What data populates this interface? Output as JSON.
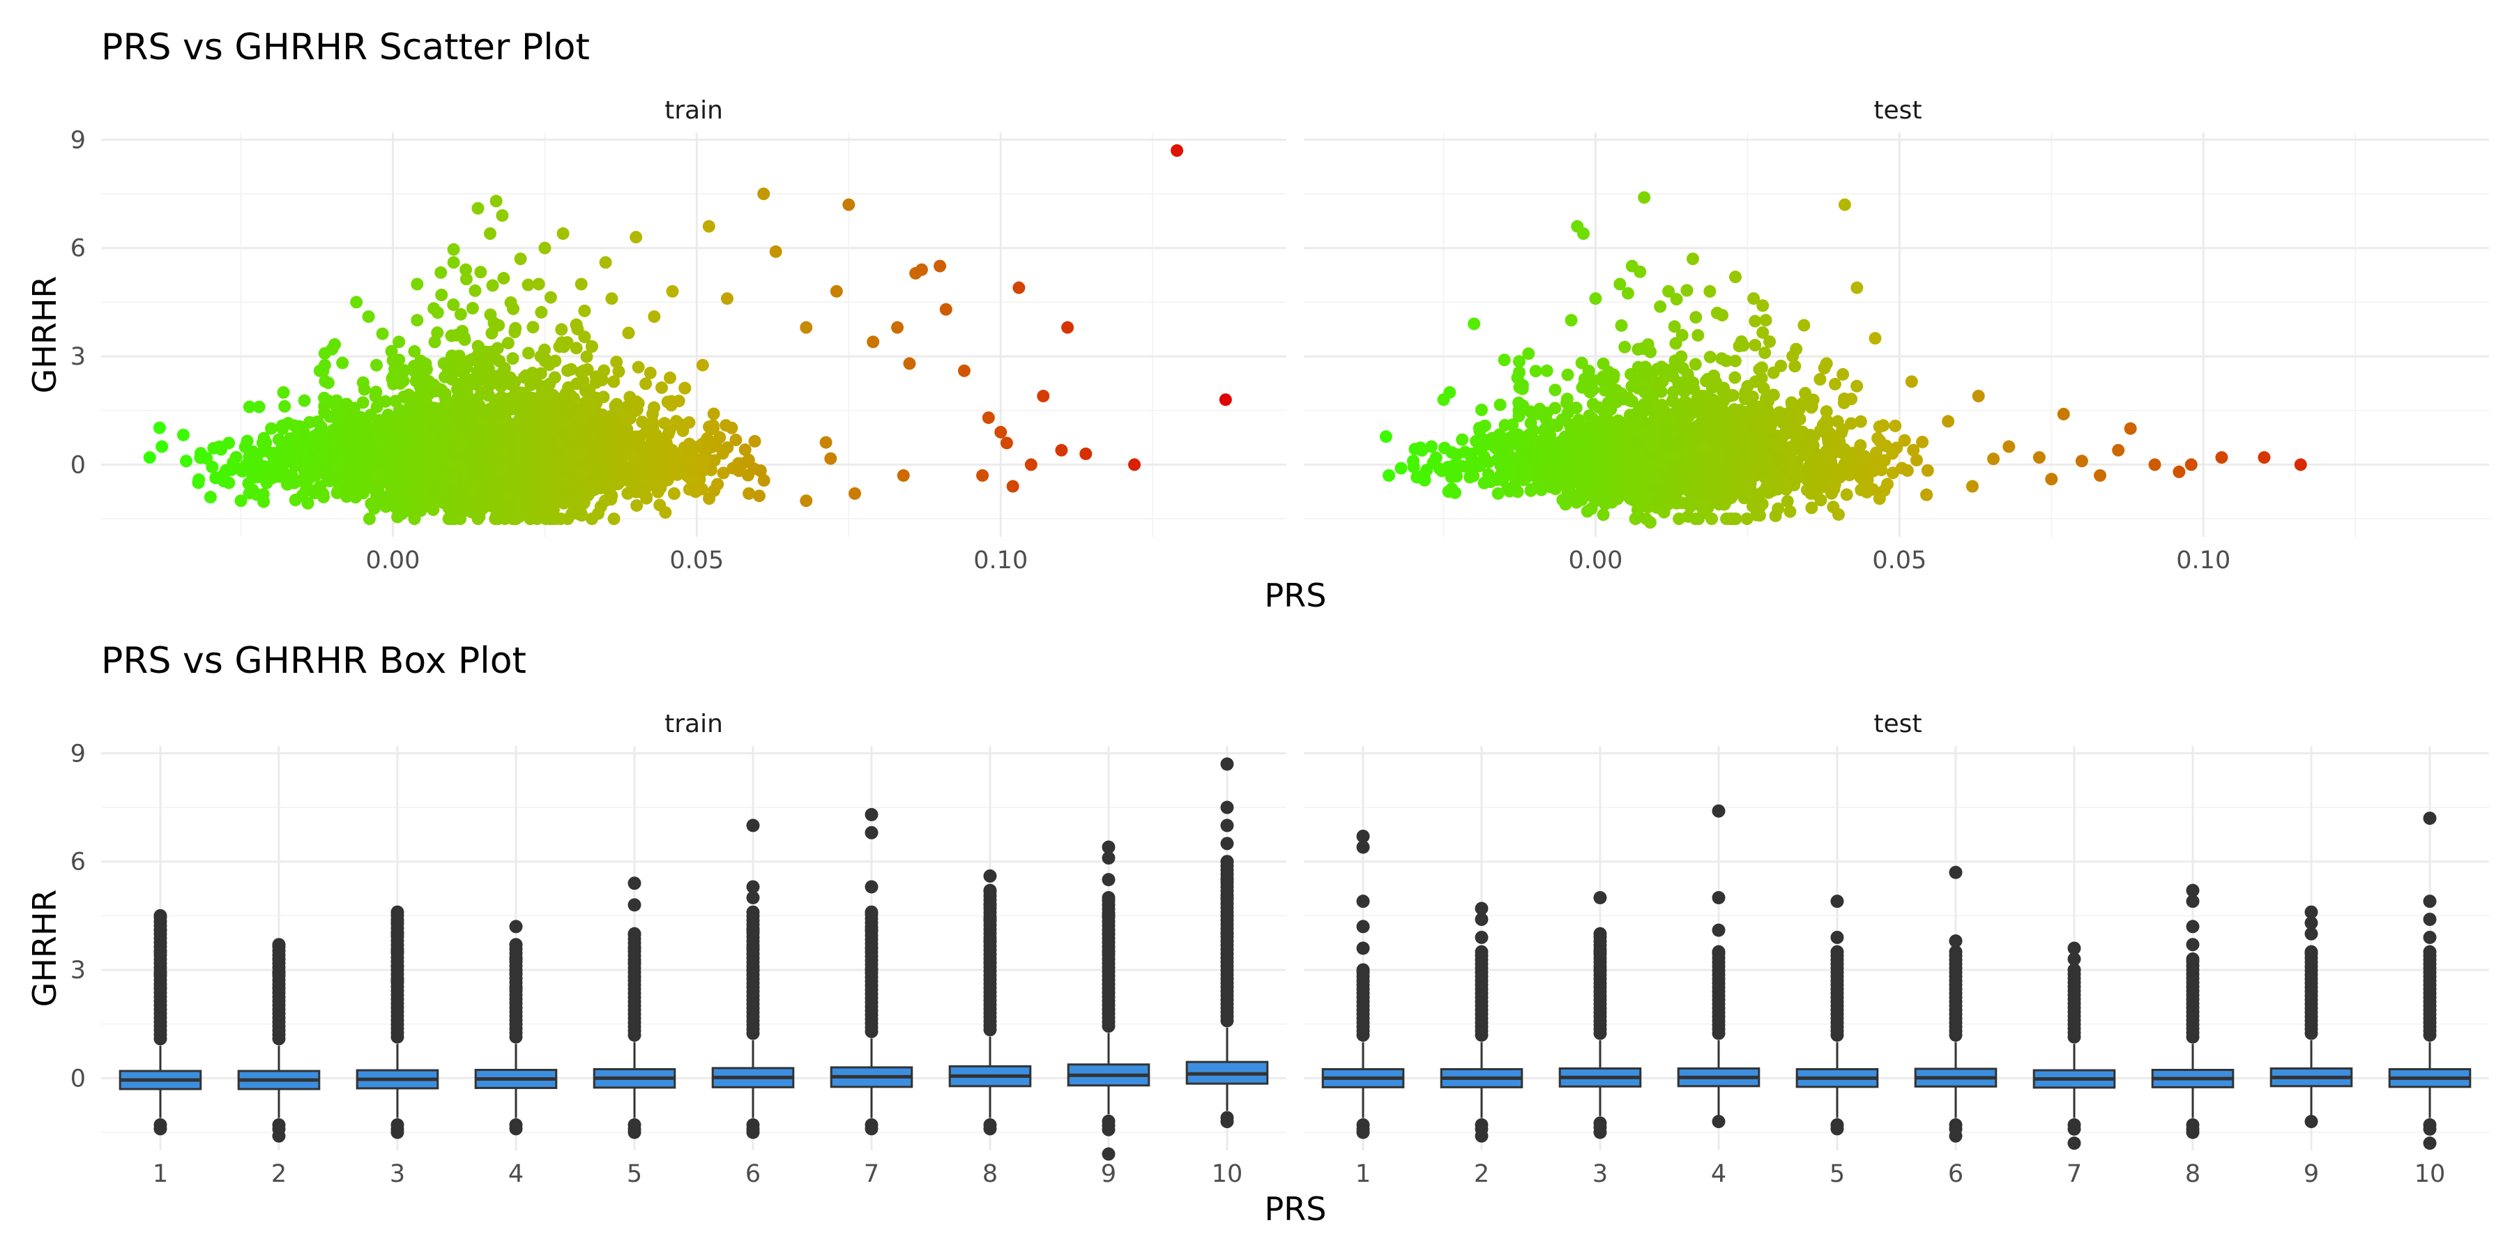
{
  "colors": {
    "low": "#33ff00",
    "mid": "#c0b000",
    "high": "#e00000",
    "box_fill": "#3c8fe0",
    "box_line": "#333333",
    "outlier": "#333333",
    "grid": "#ebebeb"
  },
  "chart_data": [
    {
      "type": "scatter",
      "title": "PRS vs GHRHR Scatter Plot",
      "xlabel": "PRS",
      "ylabel": "GHRHR",
      "color_scale": "continuous gradient by PRS (green to red)",
      "legend": "none",
      "grid": true,
      "xlim": [
        -0.048,
        0.147
      ],
      "ylim": [
        -2.0,
        9.2
      ],
      "x_ticks": [
        0.0,
        0.05,
        0.1
      ],
      "x_tick_labels": [
        "0.00",
        "0.05",
        "0.10"
      ],
      "y_ticks": [
        0,
        3,
        6,
        9
      ],
      "y_tick_labels": [
        "0",
        "3",
        "6",
        "9"
      ],
      "panels": [
        {
          "name": "train",
          "cloud": {
            "x_center": 0.015,
            "x_sd": 0.016,
            "y_sd": 0.9,
            "n": 3200
          },
          "points": [
            {
              "x": -0.04,
              "y": 0.2
            },
            {
              "x": -0.038,
              "y": 0.5
            },
            {
              "x": -0.034,
              "y": 0.1
            },
            {
              "x": -0.032,
              "y": -0.5
            },
            {
              "x": -0.03,
              "y": -0.9
            },
            {
              "x": -0.027,
              "y": 0.6
            },
            {
              "x": -0.025,
              "y": -1.0
            },
            {
              "x": -0.022,
              "y": 1.6
            },
            {
              "x": -0.02,
              "y": 1.0
            },
            {
              "x": -0.018,
              "y": 2.0
            },
            {
              "x": -0.012,
              "y": 2.6
            },
            {
              "x": -0.01,
              "y": 3.2
            },
            {
              "x": -0.006,
              "y": 4.5
            },
            {
              "x": -0.004,
              "y": 4.1
            },
            {
              "x": 0.001,
              "y": 3.4
            },
            {
              "x": 0.004,
              "y": 4.0
            },
            {
              "x": 0.004,
              "y": 5.0
            },
            {
              "x": 0.008,
              "y": 4.7
            },
            {
              "x": 0.01,
              "y": 5.6
            },
            {
              "x": 0.012,
              "y": 5.4
            },
            {
              "x": 0.014,
              "y": 7.1
            },
            {
              "x": 0.016,
              "y": 6.4
            },
            {
              "x": 0.017,
              "y": 7.3
            },
            {
              "x": 0.018,
              "y": 6.9
            },
            {
              "x": 0.021,
              "y": 5.7
            },
            {
              "x": 0.024,
              "y": 5.0
            },
            {
              "x": 0.025,
              "y": 6.0
            },
            {
              "x": 0.028,
              "y": 6.4
            },
            {
              "x": 0.031,
              "y": 5.0
            },
            {
              "x": 0.035,
              "y": 5.6
            },
            {
              "x": 0.036,
              "y": 4.6
            },
            {
              "x": 0.04,
              "y": 6.3
            },
            {
              "x": 0.043,
              "y": 4.1
            },
            {
              "x": 0.046,
              "y": 4.8
            },
            {
              "x": 0.052,
              "y": 6.6
            },
            {
              "x": 0.055,
              "y": 4.6
            },
            {
              "x": 0.061,
              "y": 7.5
            },
            {
              "x": 0.063,
              "y": 5.9
            },
            {
              "x": 0.068,
              "y": 3.8
            },
            {
              "x": 0.073,
              "y": 4.8
            },
            {
              "x": 0.075,
              "y": 7.2
            },
            {
              "x": 0.079,
              "y": 3.4
            },
            {
              "x": 0.083,
              "y": 3.8
            },
            {
              "x": 0.085,
              "y": 2.8
            },
            {
              "x": 0.086,
              "y": 5.3
            },
            {
              "x": 0.087,
              "y": 5.4
            },
            {
              "x": 0.09,
              "y": 5.5
            },
            {
              "x": 0.091,
              "y": 4.3
            },
            {
              "x": 0.094,
              "y": 2.6
            },
            {
              "x": 0.098,
              "y": 1.3
            },
            {
              "x": 0.1,
              "y": 0.9
            },
            {
              "x": 0.101,
              "y": 0.6
            },
            {
              "x": 0.102,
              "y": -0.6
            },
            {
              "x": 0.103,
              "y": 4.9
            },
            {
              "x": 0.105,
              "y": 0.0
            },
            {
              "x": 0.107,
              "y": 1.9
            },
            {
              "x": 0.11,
              "y": 0.4
            },
            {
              "x": 0.111,
              "y": 3.8
            },
            {
              "x": 0.114,
              "y": 0.3
            },
            {
              "x": 0.122,
              "y": 0.0
            },
            {
              "x": 0.129,
              "y": 8.7
            },
            {
              "x": 0.137,
              "y": 1.8
            },
            {
              "x": 0.025,
              "y": -1.4
            },
            {
              "x": 0.068,
              "y": -1.0
            },
            {
              "x": 0.076,
              "y": -0.8
            },
            {
              "x": 0.084,
              "y": -0.3
            },
            {
              "x": 0.097,
              "y": -0.3
            }
          ]
        },
        {
          "name": "test",
          "cloud": {
            "x_center": 0.012,
            "x_sd": 0.015,
            "y_sd": 0.85,
            "n": 2000
          },
          "points": [
            {
              "x": -0.034,
              "y": -0.3
            },
            {
              "x": -0.032,
              "y": -0.1
            },
            {
              "x": -0.03,
              "y": 0.1
            },
            {
              "x": -0.027,
              "y": 0.5
            },
            {
              "x": -0.025,
              "y": 1.8
            },
            {
              "x": -0.024,
              "y": 2.0
            },
            {
              "x": -0.02,
              "y": 3.9
            },
            {
              "x": -0.015,
              "y": 2.9
            },
            {
              "x": -0.012,
              "y": 2.2
            },
            {
              "x": -0.008,
              "y": 2.6
            },
            {
              "x": -0.004,
              "y": 4.0
            },
            {
              "x": -0.003,
              "y": 6.6
            },
            {
              "x": -0.002,
              "y": 6.4
            },
            {
              "x": 0.0,
              "y": 4.6
            },
            {
              "x": 0.004,
              "y": 5.0
            },
            {
              "x": 0.006,
              "y": 5.5
            },
            {
              "x": 0.008,
              "y": 7.4
            },
            {
              "x": 0.012,
              "y": 4.8
            },
            {
              "x": 0.016,
              "y": 5.7
            },
            {
              "x": 0.02,
              "y": 4.2
            },
            {
              "x": 0.023,
              "y": 5.2
            },
            {
              "x": 0.026,
              "y": 4.6
            },
            {
              "x": 0.028,
              "y": 4.0
            },
            {
              "x": 0.033,
              "y": 3.2
            },
            {
              "x": 0.038,
              "y": 2.8
            },
            {
              "x": 0.041,
              "y": 7.2
            },
            {
              "x": 0.043,
              "y": 4.9
            },
            {
              "x": 0.046,
              "y": 3.5
            },
            {
              "x": 0.052,
              "y": 2.3
            },
            {
              "x": 0.058,
              "y": 1.2
            },
            {
              "x": 0.063,
              "y": 1.9
            },
            {
              "x": 0.068,
              "y": 0.5
            },
            {
              "x": 0.073,
              "y": 0.2
            },
            {
              "x": 0.077,
              "y": 1.4
            },
            {
              "x": 0.08,
              "y": 0.1
            },
            {
              "x": 0.083,
              "y": -0.3
            },
            {
              "x": 0.086,
              "y": 0.4
            },
            {
              "x": 0.088,
              "y": 1.0
            },
            {
              "x": 0.092,
              "y": 0.0
            },
            {
              "x": 0.096,
              "y": -0.2
            },
            {
              "x": 0.098,
              "y": 0.0
            },
            {
              "x": 0.103,
              "y": 0.2
            },
            {
              "x": 0.11,
              "y": 0.2
            },
            {
              "x": 0.116,
              "y": 0.0
            },
            {
              "x": 0.009,
              "y": -1.6
            },
            {
              "x": 0.032,
              "y": -1.3
            },
            {
              "x": 0.062,
              "y": -0.6
            },
            {
              "x": 0.075,
              "y": -0.4
            }
          ]
        }
      ]
    },
    {
      "type": "box",
      "title": "PRS vs GHRHR Box Plot",
      "xlabel": "PRS",
      "ylabel": "GHRHR",
      "legend": "none",
      "grid": true,
      "ylim": [
        -2.0,
        9.2
      ],
      "y_ticks": [
        0,
        3,
        6,
        9
      ],
      "y_tick_labels": [
        "0",
        "3",
        "6",
        "9"
      ],
      "categories": [
        "1",
        "2",
        "3",
        "4",
        "5",
        "6",
        "7",
        "8",
        "9",
        "10"
      ],
      "panels": [
        {
          "name": "train",
          "boxes": [
            {
              "cat": "1",
              "q1": -0.3,
              "median": -0.05,
              "q3": 0.2,
              "lo": -1.1,
              "hi": 0.9,
              "out_lo": -1.15,
              "out_lo2": -1.4,
              "out_hi": 4.5,
              "out_top": [
                2.5,
                2.9,
                3.5,
                4.1,
                4.5
              ]
            },
            {
              "cat": "2",
              "q1": -0.3,
              "median": -0.05,
              "q3": 0.2,
              "lo": -1.1,
              "hi": 0.9,
              "out_lo": -1.15,
              "out_lo2": -1.6,
              "out_hi": 3.7,
              "out_top": [
                2.5,
                2.9,
                3.3,
                3.7
              ]
            },
            {
              "cat": "3",
              "q1": -0.28,
              "median": -0.03,
              "q3": 0.22,
              "lo": -1.1,
              "hi": 0.95,
              "out_lo": -1.15,
              "out_lo2": -1.5,
              "out_hi": 4.6,
              "out_top": [
                2.7,
                3.1,
                3.5,
                4.0,
                4.3,
                4.6
              ]
            },
            {
              "cat": "4",
              "q1": -0.27,
              "median": -0.02,
              "q3": 0.23,
              "lo": -1.1,
              "hi": 0.95,
              "out_lo": -1.15,
              "out_lo2": -1.4,
              "out_hi": 3.7,
              "out_top": [
                2.5,
                2.9,
                3.3,
                3.7,
                4.2
              ]
            },
            {
              "cat": "5",
              "q1": -0.26,
              "median": 0.0,
              "q3": 0.25,
              "lo": -1.1,
              "hi": 1.0,
              "out_lo": -1.15,
              "out_lo2": -1.5,
              "out_hi": 4.0,
              "out_top": [
                2.8,
                3.2,
                3.6,
                4.0,
                4.8,
                5.4
              ]
            },
            {
              "cat": "6",
              "q1": -0.25,
              "median": 0.02,
              "q3": 0.28,
              "lo": -1.1,
              "hi": 1.05,
              "out_lo": -1.15,
              "out_lo2": -1.5,
              "out_hi": 4.6,
              "out_top": [
                3.0,
                3.6,
                4.1,
                4.6,
                5.0,
                5.3,
                7.0
              ]
            },
            {
              "cat": "7",
              "q1": -0.24,
              "median": 0.04,
              "q3": 0.3,
              "lo": -1.1,
              "hi": 1.1,
              "out_lo": -1.15,
              "out_lo2": -1.4,
              "out_hi": 4.6,
              "out_top": [
                3.0,
                3.6,
                4.1,
                4.6,
                5.3,
                6.8,
                7.3
              ]
            },
            {
              "cat": "8",
              "q1": -0.22,
              "median": 0.06,
              "q3": 0.33,
              "lo": -1.1,
              "hi": 1.15,
              "out_lo": -1.15,
              "out_lo2": -1.4,
              "out_hi": 5.2,
              "out_top": [
                3.2,
                3.8,
                4.4,
                4.8,
                5.2,
                5.6
              ]
            },
            {
              "cat": "9",
              "q1": -0.2,
              "median": 0.08,
              "q3": 0.38,
              "lo": -1.0,
              "hi": 1.25,
              "out_lo": -1.05,
              "out_lo2": -2.1,
              "out_hi": 5.0,
              "out_top": [
                3.5,
                4.0,
                4.5,
                5.0,
                5.5,
                6.1,
                6.4
              ]
            },
            {
              "cat": "10",
              "q1": -0.15,
              "median": 0.12,
              "q3": 0.45,
              "lo": -0.9,
              "hi": 1.4,
              "out_lo": -0.95,
              "out_lo2": -1.2,
              "out_hi": 6.0,
              "out_top": [
                4.0,
                4.5,
                5.0,
                5.5,
                6.0,
                6.5,
                7.0,
                7.5,
                8.7
              ]
            }
          ]
        },
        {
          "name": "test",
          "boxes": [
            {
              "cat": "1",
              "q1": -0.25,
              "median": 0.0,
              "q3": 0.25,
              "lo": -1.1,
              "hi": 1.0,
              "out_lo": -1.15,
              "out_lo2": -1.5,
              "out_hi": 3.0,
              "out_top": [
                3.0,
                3.6,
                4.2,
                4.9,
                6.4,
                6.7
              ]
            },
            {
              "cat": "2",
              "q1": -0.25,
              "median": 0.0,
              "q3": 0.25,
              "lo": -1.1,
              "hi": 1.0,
              "out_lo": -1.15,
              "out_lo2": -1.6,
              "out_hi": 3.5,
              "out_top": [
                3.5,
                3.9,
                4.4,
                4.7
              ]
            },
            {
              "cat": "3",
              "q1": -0.23,
              "median": 0.02,
              "q3": 0.27,
              "lo": -1.05,
              "hi": 1.05,
              "out_lo": -1.1,
              "out_lo2": -1.5,
              "out_hi": 4.0,
              "out_top": [
                3.0,
                3.5,
                4.0,
                5.0
              ]
            },
            {
              "cat": "4",
              "q1": -0.22,
              "median": 0.02,
              "q3": 0.27,
              "lo": -1.05,
              "hi": 1.05,
              "out_lo": -1.1,
              "out_lo2": -1.2,
              "out_hi": 3.5,
              "out_top": [
                3.5,
                4.1,
                5.0,
                7.4
              ]
            },
            {
              "cat": "5",
              "q1": -0.24,
              "median": 0.0,
              "q3": 0.25,
              "lo": -1.1,
              "hi": 1.0,
              "out_lo": -1.15,
              "out_lo2": -1.4,
              "out_hi": 3.5,
              "out_top": [
                3.5,
                3.9,
                4.9
              ]
            },
            {
              "cat": "6",
              "q1": -0.23,
              "median": 0.01,
              "q3": 0.26,
              "lo": -1.1,
              "hi": 1.0,
              "out_lo": -1.15,
              "out_lo2": -1.6,
              "out_hi": 3.5,
              "out_top": [
                3.5,
                3.8,
                5.7
              ]
            },
            {
              "cat": "7",
              "q1": -0.26,
              "median": -0.02,
              "q3": 0.22,
              "lo": -1.1,
              "hi": 0.95,
              "out_lo": -1.15,
              "out_lo2": -1.8,
              "out_hi": 3.0,
              "out_top": [
                3.0,
                3.3,
                3.6
              ]
            },
            {
              "cat": "8",
              "q1": -0.25,
              "median": -0.01,
              "q3": 0.23,
              "lo": -1.1,
              "hi": 0.95,
              "out_lo": -1.15,
              "out_lo2": -1.5,
              "out_hi": 3.3,
              "out_top": [
                3.3,
                3.7,
                4.2,
                4.9,
                5.2
              ]
            },
            {
              "cat": "9",
              "q1": -0.22,
              "median": 0.02,
              "q3": 0.27,
              "lo": -1.05,
              "hi": 1.05,
              "out_lo": -1.1,
              "out_lo2": -1.2,
              "out_hi": 3.5,
              "out_top": [
                3.5,
                4.0,
                4.3,
                4.6
              ]
            },
            {
              "cat": "10",
              "q1": -0.24,
              "median": 0.0,
              "q3": 0.25,
              "lo": -1.1,
              "hi": 1.0,
              "out_lo": -1.15,
              "out_lo2": -1.8,
              "out_hi": 3.5,
              "out_top": [
                3.5,
                3.9,
                4.4,
                4.9,
                7.2
              ]
            }
          ]
        }
      ]
    }
  ]
}
